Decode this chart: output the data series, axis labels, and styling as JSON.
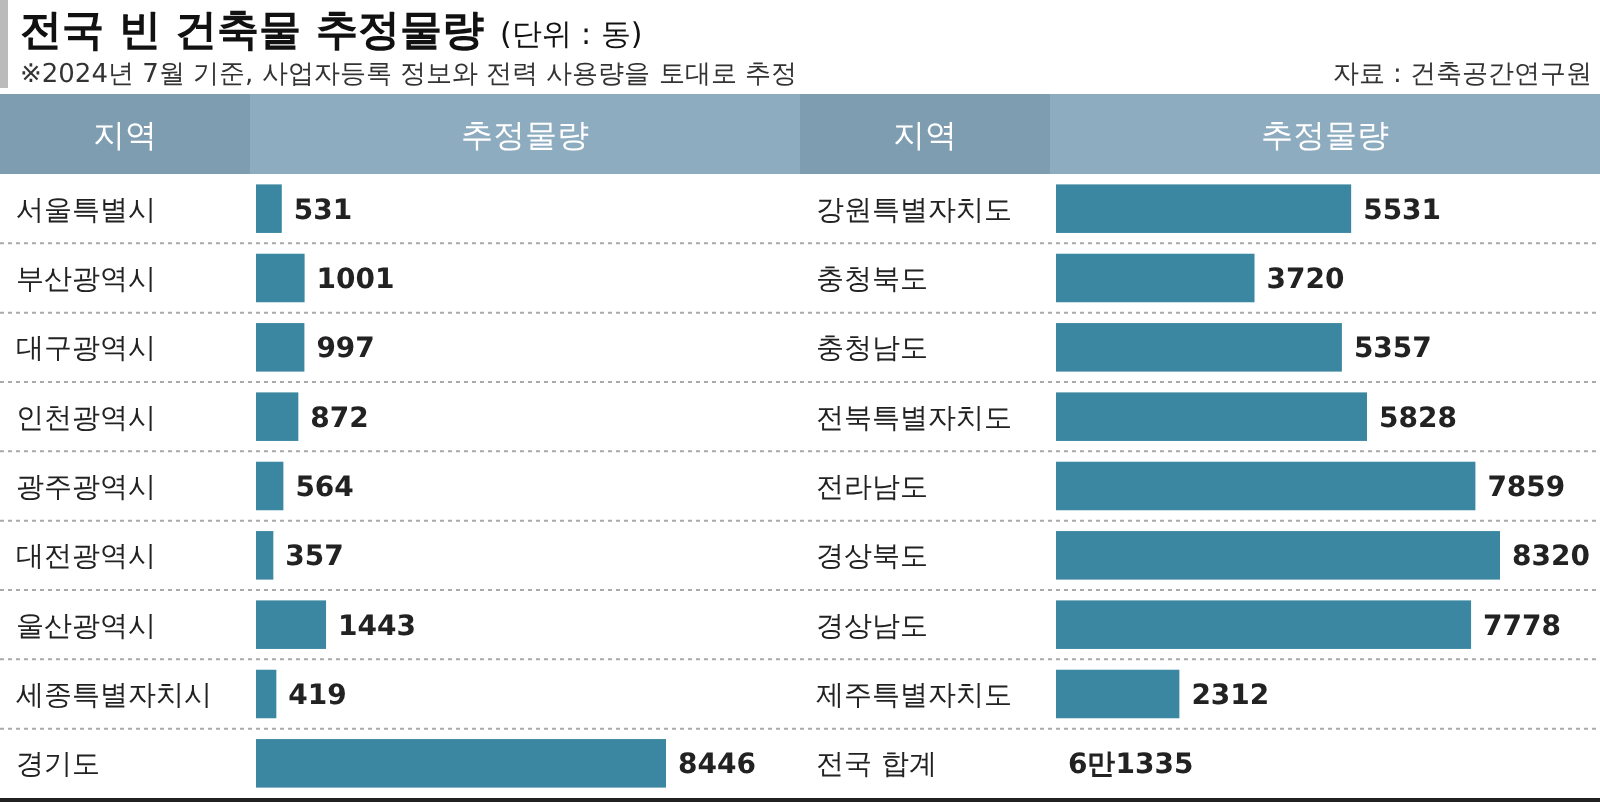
{
  "chart_data": [
    {
      "type": "bar",
      "orientation": "horizontal",
      "title": "전국 빈 건축물 추정물량",
      "subtitle": "(단위 : 동)",
      "annotations": [
        "※2024년 7월 기준, 사업자등록 정보와 전력 사용량을 토대로 추정",
        "자료 : 건축공간연구원"
      ],
      "ylabel": "지역",
      "xlabel": "추정물량",
      "categories": [
        "서울특별시",
        "부산광역시",
        "대구광역시",
        "인천광역시",
        "광주광역시",
        "대전광역시",
        "울산광역시",
        "세종특별자치시",
        "경기도"
      ],
      "values": [
        531,
        1001,
        997,
        872,
        564,
        357,
        1443,
        419,
        8446
      ],
      "color": "#3b86a0",
      "data_labels": true
    },
    {
      "type": "bar",
      "orientation": "horizontal",
      "ylabel": "지역",
      "xlabel": "추정물량",
      "categories": [
        "강원특별자치도",
        "충청북도",
        "충청남도",
        "전북특별자치도",
        "전라남도",
        "경상북도",
        "경상남도",
        "제주특별자치도",
        "전국 합계"
      ],
      "values": [
        5531,
        3720,
        5357,
        5828,
        7859,
        8320,
        7778,
        2312,
        null
      ],
      "value_labels": [
        "5531",
        "3720",
        "5357",
        "5828",
        "7859",
        "8320",
        "7778",
        "2312",
        "6만1335"
      ],
      "color": "#3b86a0"
    }
  ]
}
